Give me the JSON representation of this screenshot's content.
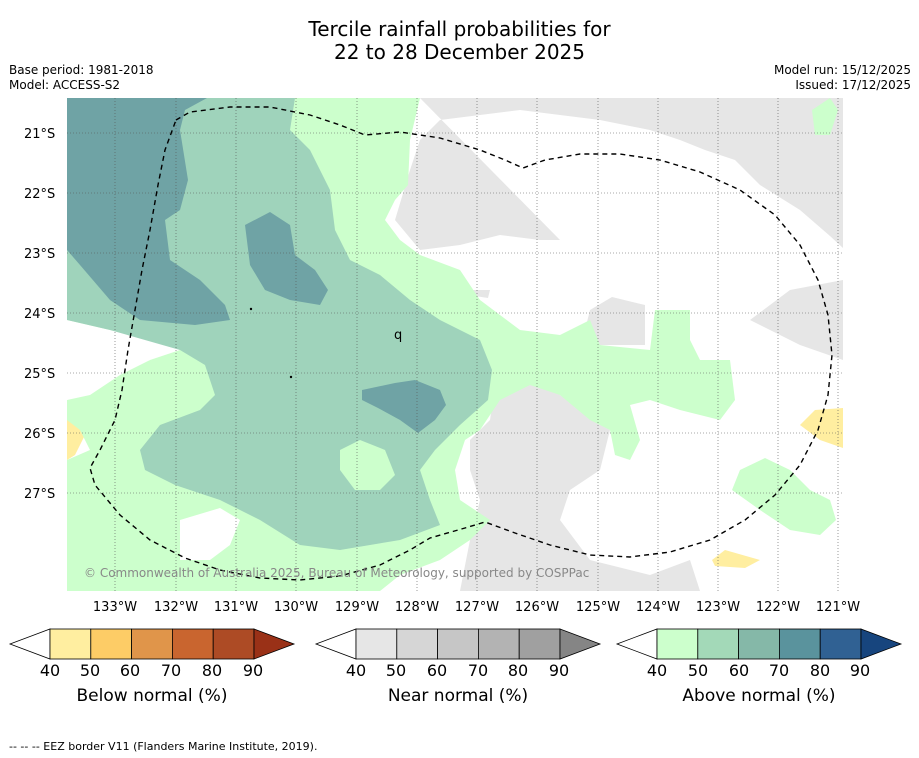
{
  "title": {
    "line1": "Tercile rainfall probabilities for",
    "line2": "22 to 28 December 2025"
  },
  "meta": {
    "base_period": "Base period: 1981-2018",
    "model": "Model: ACCESS-S2",
    "model_run": "Model run: 15/12/2025",
    "issued": "Issued: 17/12/2025"
  },
  "map": {
    "lat_labels": [
      "21°S",
      "22°S",
      "23°S",
      "24°S",
      "25°S",
      "26°S",
      "27°S"
    ],
    "lon_labels": [
      "133°W",
      "132°W",
      "131°W",
      "130°W",
      "129°W",
      "128°W",
      "127°W",
      "126°W",
      "125°W",
      "124°W",
      "123°W",
      "122°W",
      "121°W"
    ],
    "copyright": "© Commonwealth of Australia 2025, Bureau of Meteorology, supported by COSPPac",
    "island_label": "q"
  },
  "colorbars": [
    {
      "name": "Below normal (%)",
      "ticks": [
        "40",
        "50",
        "60",
        "70",
        "80",
        "90"
      ],
      "colors": [
        "#ffeea0",
        "#fdcc66",
        "#e0954a",
        "#c9652f",
        "#ad4b25",
        "#9a3117"
      ]
    },
    {
      "name": "Near normal (%)",
      "ticks": [
        "40",
        "50",
        "60",
        "70",
        "80",
        "90"
      ],
      "colors": [
        "#e6e6e6",
        "#d6d6d6",
        "#c6c6c6",
        "#b3b3b3",
        "#a0a0a0",
        "#858585"
      ]
    },
    {
      "name": "Above normal (%)",
      "ticks": [
        "40",
        "50",
        "60",
        "70",
        "80",
        "90"
      ],
      "colors": [
        "#ccffcc",
        "#a3d9b8",
        "#85b8a8",
        "#5a939d",
        "#306193",
        "#17457e"
      ]
    }
  ],
  "footer": "-- -- -- EEZ border V11 (Flanders Marine Institute, 2019)."
}
